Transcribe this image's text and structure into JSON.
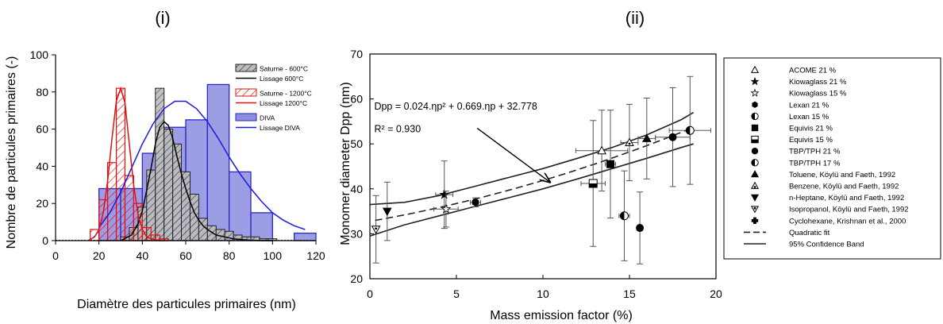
{
  "chart_data": [
    {
      "panel_label": "(i)",
      "type": "bar",
      "xlabel": "Diamètre des particules primaires (nm)",
      "ylabel": "Nombre de particules primaires (-)",
      "xlim": [
        0,
        120
      ],
      "ylim": [
        0,
        100
      ],
      "xticks": [
        0,
        20,
        40,
        60,
        80,
        100,
        120
      ],
      "yticks": [
        0,
        20,
        40,
        60,
        80,
        100
      ],
      "grid": false,
      "legend_placement": "top-right",
      "legend": [
        {
          "label": "Saturne - 600°C",
          "kind": "hatch",
          "color": "#333333"
        },
        {
          "label": "Lissage 600°C",
          "kind": "line",
          "color": "#000000"
        },
        {
          "label": "Saturne - 1200°C",
          "kind": "hatch",
          "color": "#e01010"
        },
        {
          "label": "Lissage 1200°C",
          "kind": "line",
          "color": "#e01010"
        },
        {
          "label": "DIVA",
          "kind": "fill",
          "color": "#2a2ac0"
        },
        {
          "label": "Lissage DIVA",
          "kind": "line",
          "color": "#1a1ae0"
        }
      ],
      "series": [
        {
          "name": "DIVA",
          "style": "fill",
          "color": "#2a2ac0",
          "bins": [
            {
              "x0": 20,
              "x1": 30,
              "value": 28
            },
            {
              "x0": 30,
              "x1": 40,
              "value": 28
            },
            {
              "x0": 40,
              "x1": 50,
              "value": 47
            },
            {
              "x0": 50,
              "x1": 60,
              "value": 61
            },
            {
              "x0": 60,
              "x1": 70,
              "value": 65
            },
            {
              "x0": 70,
              "x1": 80,
              "value": 84
            },
            {
              "x0": 80,
              "x1": 90,
              "value": 37
            },
            {
              "x0": 90,
              "x1": 100,
              "value": 15
            },
            {
              "x0": 100,
              "x1": 110,
              "value": 0
            },
            {
              "x0": 110,
              "x1": 120,
              "value": 4
            }
          ]
        },
        {
          "name": "Saturne - 600°C",
          "style": "hatch",
          "color": "#333333",
          "bins": [
            {
              "x0": 30,
              "x1": 34,
              "value": 2
            },
            {
              "x0": 34,
              "x1": 38,
              "value": 7
            },
            {
              "x0": 38,
              "x1": 42,
              "value": 18
            },
            {
              "x0": 42,
              "x1": 46,
              "value": 38
            },
            {
              "x0": 46,
              "x1": 50,
              "value": 82
            },
            {
              "x0": 50,
              "x1": 54,
              "value": 60
            },
            {
              "x0": 54,
              "x1": 58,
              "value": 52
            },
            {
              "x0": 58,
              "x1": 62,
              "value": 37
            },
            {
              "x0": 62,
              "x1": 66,
              "value": 25
            },
            {
              "x0": 66,
              "x1": 70,
              "value": 12
            },
            {
              "x0": 70,
              "x1": 74,
              "value": 8
            },
            {
              "x0": 74,
              "x1": 78,
              "value": 6
            },
            {
              "x0": 78,
              "x1": 82,
              "value": 5
            },
            {
              "x0": 82,
              "x1": 86,
              "value": 3
            },
            {
              "x0": 86,
              "x1": 90,
              "value": 2
            },
            {
              "x0": 90,
              "x1": 94,
              "value": 2
            },
            {
              "x0": 94,
              "x1": 98,
              "value": 1
            },
            {
              "x0": 98,
              "x1": 102,
              "value": 1
            }
          ]
        },
        {
          "name": "Saturne - 1200°C",
          "style": "hatch",
          "color": "#e01010",
          "bins": [
            {
              "x0": 16,
              "x1": 20,
              "value": 6
            },
            {
              "x0": 20,
              "x1": 24,
              "value": 22
            },
            {
              "x0": 24,
              "x1": 28,
              "value": 42
            },
            {
              "x0": 28,
              "x1": 32,
              "value": 82
            },
            {
              "x0": 32,
              "x1": 36,
              "value": 35
            },
            {
              "x0": 36,
              "x1": 40,
              "value": 20
            },
            {
              "x0": 40,
              "x1": 44,
              "value": 7
            },
            {
              "x0": 44,
              "x1": 48,
              "value": 3
            },
            {
              "x0": 48,
              "x1": 52,
              "value": 1
            }
          ]
        }
      ],
      "fits": [
        {
          "name": "Lissage DIVA",
          "color": "#1a1ae0",
          "x": [
            20,
            25,
            30,
            35,
            40,
            45,
            50,
            55,
            60,
            65,
            70,
            75,
            80,
            85,
            90,
            95,
            100,
            105,
            110,
            115
          ],
          "y": [
            7,
            15,
            26,
            39,
            52,
            63,
            71,
            75,
            75,
            71,
            64,
            55,
            45,
            36,
            28,
            21,
            15,
            11,
            8,
            6
          ]
        },
        {
          "name": "Lissage 600°C",
          "color": "#000000",
          "x": [
            30,
            35,
            38,
            40,
            42,
            44,
            46,
            48,
            50,
            52,
            54,
            56,
            58,
            60,
            62,
            64,
            66,
            68,
            70,
            74,
            78,
            82,
            86,
            90,
            95,
            100
          ],
          "y": [
            0,
            3,
            9,
            16,
            27,
            39,
            52,
            61,
            64,
            62,
            55,
            45,
            36,
            28,
            21,
            15,
            11,
            8,
            6,
            3,
            2,
            1,
            0.5,
            0.2,
            0,
            0
          ]
        },
        {
          "name": "Lissage 1200°C",
          "color": "#e01010",
          "x": [
            15,
            18,
            20,
            22,
            24,
            26,
            28,
            30,
            32,
            34,
            36,
            38,
            40,
            42,
            44,
            46,
            48,
            50
          ],
          "y": [
            0,
            2,
            6,
            15,
            32,
            55,
            75,
            82,
            74,
            52,
            30,
            14,
            6,
            2,
            1,
            0.5,
            0,
            0
          ]
        }
      ]
    },
    {
      "panel_label": "(ii)",
      "type": "scatter",
      "xlabel": "Mass emission factor (%)",
      "ylabel": "Monomer diameter Dpp (nm)",
      "xlim": [
        0,
        20
      ],
      "ylim": [
        20,
        70
      ],
      "xticks": [
        0,
        5,
        10,
        15,
        20
      ],
      "yticks": [
        20,
        30,
        40,
        50,
        60,
        70
      ],
      "grid": false,
      "legend_placement": "right outside",
      "annotation": {
        "equation": "Dpp = 0.024.ηp² + 0.669.ηp + 32.778",
        "r2": "R² = 0.930",
        "arrow_from": [
          6.2,
          53.5
        ],
        "arrow_to": [
          10.4,
          41.5
        ]
      },
      "legend": [
        {
          "label": "ACOME 21 %",
          "marker": "triangle-open"
        },
        {
          "label": "Kiowaglass 21 %",
          "marker": "star-filled"
        },
        {
          "label": "Kiowaglass 15 %",
          "marker": "star-open"
        },
        {
          "label": "Lexan 21 %",
          "marker": "hexagon-filled"
        },
        {
          "label": "Lexan 15 %",
          "marker": "circle-half"
        },
        {
          "label": "Equivis 21 %",
          "marker": "square-filled"
        },
        {
          "label": "Equivis 15 %",
          "marker": "square-half"
        },
        {
          "label": "TBP/TPH 21 %",
          "marker": "circle-filled"
        },
        {
          "label": "TBP/TPH 17 %",
          "marker": "circle-half"
        },
        {
          "label": "Toluene, Köylü and Faeth, 1992",
          "marker": "triangle-filled"
        },
        {
          "label": "Benzene, Köylü and Faeth, 1992",
          "marker": "triangle-dot"
        },
        {
          "label": "n-Heptane, Köylü and Faeth, 1992",
          "marker": "triangle-down-filled"
        },
        {
          "label": "Isopropanol, Köylü and Faeth, 1992",
          "marker": "triangle-down-dot"
        },
        {
          "label": "Cyclohexane, Krishnan et al., 2000",
          "marker": "cross-filled"
        },
        {
          "label": "Quadratic fit",
          "marker": "dashed-line"
        },
        {
          "label": "95% Confidence Band",
          "marker": "solid-line"
        }
      ],
      "points": [
        {
          "x": 13.4,
          "y": 48.5,
          "marker": "triangle-open",
          "xerr": 1.5,
          "yerr": 9
        },
        {
          "x": 4.3,
          "y": 38.7,
          "marker": "star-filled",
          "xerr": 0.5,
          "yerr": 7.5
        },
        {
          "x": 4.4,
          "y": 35.5,
          "marker": "star-open",
          "xerr": 0.7,
          "yerr": 4
        },
        {
          "x": 6.1,
          "y": 37,
          "marker": "hexagon-filled",
          "xerr": 0.3,
          "yerr": 1
        },
        {
          "x": 14.7,
          "y": 34,
          "marker": "circle-half",
          "xerr": 0.3,
          "yerr": 10
        },
        {
          "x": 13.9,
          "y": 45.5,
          "marker": "square-filled",
          "xerr": 0.3,
          "yerr": 12
        },
        {
          "x": 12.9,
          "y": 41.2,
          "marker": "square-half",
          "xerr": 0.7,
          "yerr": 14
        },
        {
          "x": 17.5,
          "y": 51.5,
          "marker": "circle-filled",
          "xerr": 1.0,
          "yerr": 11
        },
        {
          "x": 18.5,
          "y": 53,
          "marker": "circle-half",
          "xerr": 1.2,
          "yerr": 12
        },
        {
          "x": 15.6,
          "y": 31.3,
          "marker": "circle-filled",
          "xerr": 0,
          "yerr": 8
        },
        {
          "x": 16.0,
          "y": 51.2,
          "marker": "triangle-filled",
          "xerr": 0.5,
          "yerr": 9
        },
        {
          "x": 15.0,
          "y": 50.3,
          "marker": "triangle-dot",
          "xerr": 0.5,
          "yerr": 8.5
        },
        {
          "x": 1.0,
          "y": 35,
          "marker": "triangle-down-filled",
          "xerr": 0,
          "yerr": 6.5
        },
        {
          "x": 0.35,
          "y": 31,
          "marker": "triangle-down-dot",
          "xerr": 0,
          "yerr": 7.5
        }
      ],
      "fit": {
        "name": "Quadratic fit",
        "a": 0.024,
        "b": 0.669,
        "c": 32.778
      },
      "band_upper": {
        "name": "95% Confidence Band",
        "x": [
          0,
          2,
          4,
          6,
          8,
          10,
          12,
          14,
          16,
          18,
          18.7
        ],
        "y": [
          36.5,
          37.0,
          38.5,
          40.5,
          42.5,
          44.5,
          46.8,
          49.2,
          52.0,
          55.4,
          57.0
        ]
      },
      "band_lower": {
        "name": "95% Confidence Band",
        "x": [
          0,
          2,
          4,
          6,
          8,
          10,
          12,
          14,
          16,
          18,
          18.7
        ],
        "y": [
          29.5,
          32.0,
          34.0,
          36.0,
          38.0,
          40.0,
          42.2,
          44.5,
          46.8,
          49.2,
          50.0
        ]
      }
    }
  ]
}
